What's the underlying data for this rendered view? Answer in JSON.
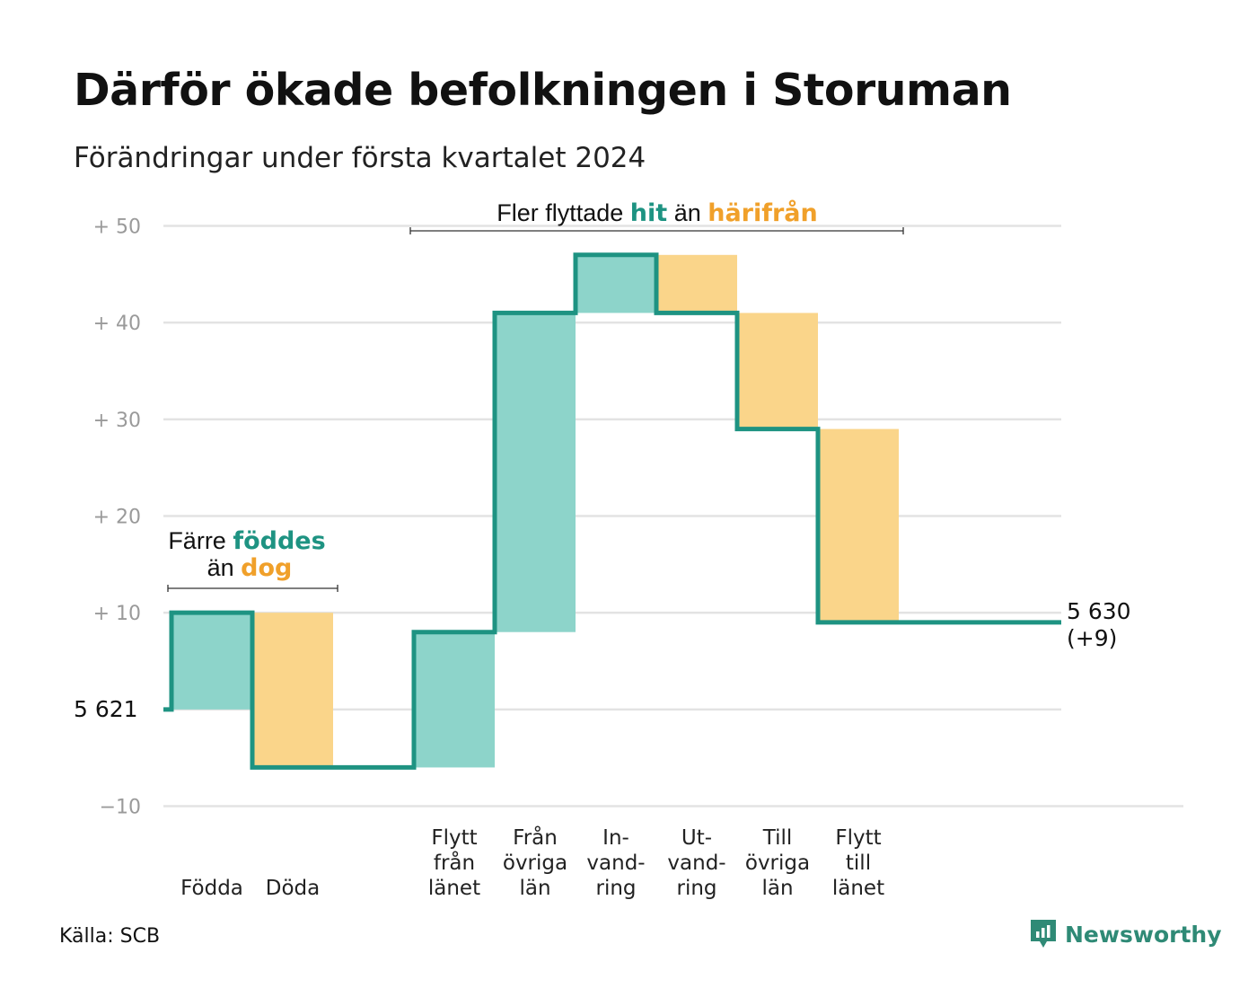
{
  "title": "Därför ökade befolkningen i Storuman",
  "subtitle": "Förändringar under första kvartalet 2024",
  "source": "Källa: SCB",
  "brand": "Newsworthy",
  "colors": {
    "in": "#8dd4ca",
    "out": "#fad58a",
    "line": "#1e9382",
    "accent_in": "#1e9382",
    "accent_out": "#f0a02a",
    "grid": "#e3e3e3"
  },
  "annotations": {
    "births": {
      "part1": "Färre",
      "part2": "föddes",
      "part3": "än",
      "part4": "dog"
    },
    "migration": {
      "part1": "Fler flyttade",
      "part2": "hit",
      "part3": "än",
      "part4": "härifrån"
    }
  },
  "start_label": "5  621",
  "end_label": {
    "line1": "5 630",
    "line2": "(+9)"
  },
  "chart_data": {
    "type": "bar",
    "subtype": "waterfall",
    "title": "Därför ökade befolkningen i Storuman",
    "subtitle": "Förändringar under första kvartalet 2024",
    "start_value": 5621,
    "end_value": 5630,
    "net_change": 9,
    "ylim": [
      -10,
      50
    ],
    "y_ticks": [
      {
        "value": -10,
        "label": "−10"
      },
      {
        "value": 0,
        "label": ""
      },
      {
        "value": 10,
        "label": "+  10"
      },
      {
        "value": 20,
        "label": "+  20"
      },
      {
        "value": 30,
        "label": "+  30"
      },
      {
        "value": 40,
        "label": "+  40"
      },
      {
        "value": 50,
        "label": "+  50"
      }
    ],
    "grid": true,
    "steps": [
      {
        "lines": [
          "Födda"
        ],
        "change": 10,
        "kind": "in"
      },
      {
        "lines": [
          "Döda"
        ],
        "change": -16,
        "kind": "out"
      },
      {
        "lines": [
          ""
        ],
        "change": 0,
        "kind": "gap"
      },
      {
        "lines": [
          "Flytt",
          "från",
          "länet"
        ],
        "change": 14,
        "kind": "in"
      },
      {
        "lines": [
          "Från",
          "övriga",
          "län"
        ],
        "change": 33,
        "kind": "in"
      },
      {
        "lines": [
          "In-",
          "vand-",
          "ring"
        ],
        "change": 6,
        "kind": "in"
      },
      {
        "lines": [
          "Ut-",
          "vand-",
          "ring"
        ],
        "change": -6,
        "kind": "out"
      },
      {
        "lines": [
          "Till",
          "övriga",
          "län"
        ],
        "change": -12,
        "kind": "out"
      },
      {
        "lines": [
          "Flytt",
          "till",
          "länet"
        ],
        "change": -20,
        "kind": "out"
      }
    ]
  }
}
